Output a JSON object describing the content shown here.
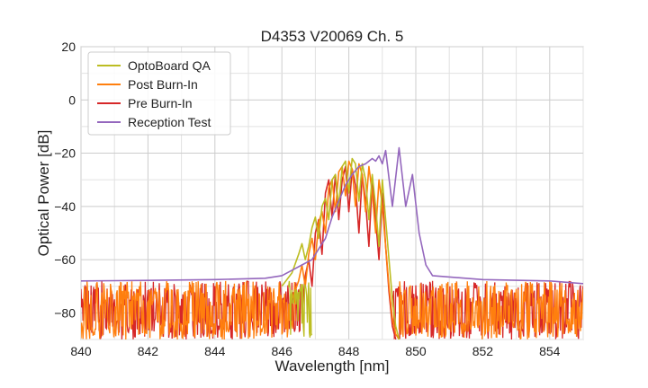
{
  "chart_data": {
    "type": "line",
    "title": "D4353 V20069 Ch. 5",
    "xlabel": "Wavelength [nm]",
    "ylabel": "Optical Power [dB]",
    "xlim": [
      840,
      855
    ],
    "ylim": [
      -90,
      20
    ],
    "xticks": [
      840,
      842,
      844,
      846,
      848,
      850,
      852,
      854
    ],
    "yticks": [
      -80,
      -60,
      -40,
      -20,
      0,
      20
    ],
    "ytick_labels": [
      "−80",
      "−60",
      "−40",
      "−20",
      "0",
      "20"
    ],
    "grid": true,
    "legend_position": "top-left",
    "noise_floor": {
      "x_start": 840,
      "x_end": 855,
      "level": -80,
      "range": [
        -90,
        -68
      ]
    },
    "series": [
      {
        "name": "OptoBoard QA",
        "color": "#bcbd22",
        "noise_range": [
          846.2,
          846.9
        ],
        "x": [
          846.0,
          846.3,
          846.5,
          846.6,
          846.7,
          846.8,
          846.9,
          847.0,
          847.1,
          847.2,
          847.3,
          847.4,
          847.5,
          847.6,
          847.7,
          847.8,
          847.9,
          848.0,
          848.1,
          848.2,
          848.3,
          848.4,
          848.5,
          848.6,
          848.7,
          848.8,
          848.9,
          849.0,
          849.1,
          849.2,
          849.3,
          849.4,
          849.5
        ],
        "y": [
          -70,
          -65,
          -58,
          -54,
          -60,
          -55,
          -48,
          -44,
          -52,
          -40,
          -37,
          -45,
          -30,
          -28,
          -40,
          -25,
          -23,
          -35,
          -22,
          -24,
          -38,
          -24,
          -30,
          -45,
          -28,
          -40,
          -55,
          -30,
          -45,
          -60,
          -75,
          -85,
          -90
        ]
      },
      {
        "name": "Post Burn-In",
        "color": "#ff7f0e",
        "noise_range": [
          840.0,
          846.4
        ],
        "x": [
          846.3,
          846.5,
          846.6,
          846.7,
          846.8,
          846.9,
          847.0,
          847.1,
          847.2,
          847.3,
          847.4,
          847.5,
          847.6,
          847.7,
          847.8,
          847.9,
          848.0,
          848.1,
          848.2,
          848.3,
          848.4,
          848.5,
          848.6,
          848.7,
          848.8,
          848.9,
          849.0,
          849.1,
          849.2,
          849.3,
          849.4,
          849.5
        ],
        "y": [
          -75,
          -68,
          -62,
          -70,
          -58,
          -52,
          -60,
          -46,
          -42,
          -50,
          -33,
          -30,
          -42,
          -27,
          -25,
          -36,
          -23,
          -26,
          -40,
          -24,
          -28,
          -42,
          -25,
          -35,
          -50,
          -30,
          -40,
          -55,
          -70,
          -82,
          -88,
          -90
        ]
      },
      {
        "name": "Pre Burn-In",
        "color": "#d62728",
        "noise_range": [
          840.0,
          846.6
        ],
        "x": [
          846.6,
          846.7,
          846.8,
          846.9,
          847.0,
          847.1,
          847.2,
          847.3,
          847.4,
          847.5,
          847.6,
          847.7,
          847.8,
          847.9,
          848.0,
          848.1,
          848.2,
          848.3,
          848.4,
          848.5,
          848.6,
          848.7,
          848.8,
          848.9,
          849.0,
          849.1,
          849.2,
          849.3,
          849.4
        ],
        "y": [
          -80,
          -66,
          -60,
          -70,
          -50,
          -45,
          -58,
          -35,
          -30,
          -44,
          -28,
          -45,
          -30,
          -25,
          -42,
          -26,
          -32,
          -50,
          -28,
          -38,
          -55,
          -30,
          -45,
          -60,
          -35,
          -55,
          -72,
          -85,
          -90
        ]
      },
      {
        "name": "Reception Test",
        "color": "#9467bd",
        "x": [
          840.0,
          842.0,
          844.0,
          845.5,
          846.0,
          846.3,
          846.6,
          846.9,
          847.1,
          847.3,
          847.5,
          847.7,
          847.9,
          848.1,
          848.3,
          848.5,
          848.7,
          848.8,
          848.9,
          849.0,
          849.1,
          849.3,
          849.5,
          849.7,
          849.9,
          850.1,
          850.3,
          850.5,
          852.0,
          854.0,
          855.0
        ],
        "y": [
          -68,
          -67.8,
          -67.5,
          -67,
          -66,
          -64,
          -62,
          -60,
          -56,
          -52,
          -44,
          -38,
          -32,
          -28,
          -25,
          -24,
          -22,
          -23,
          -21,
          -24,
          -19,
          -40,
          -18,
          -40,
          -28,
          -50,
          -62,
          -66,
          -67.5,
          -68,
          -69
        ]
      }
    ]
  }
}
